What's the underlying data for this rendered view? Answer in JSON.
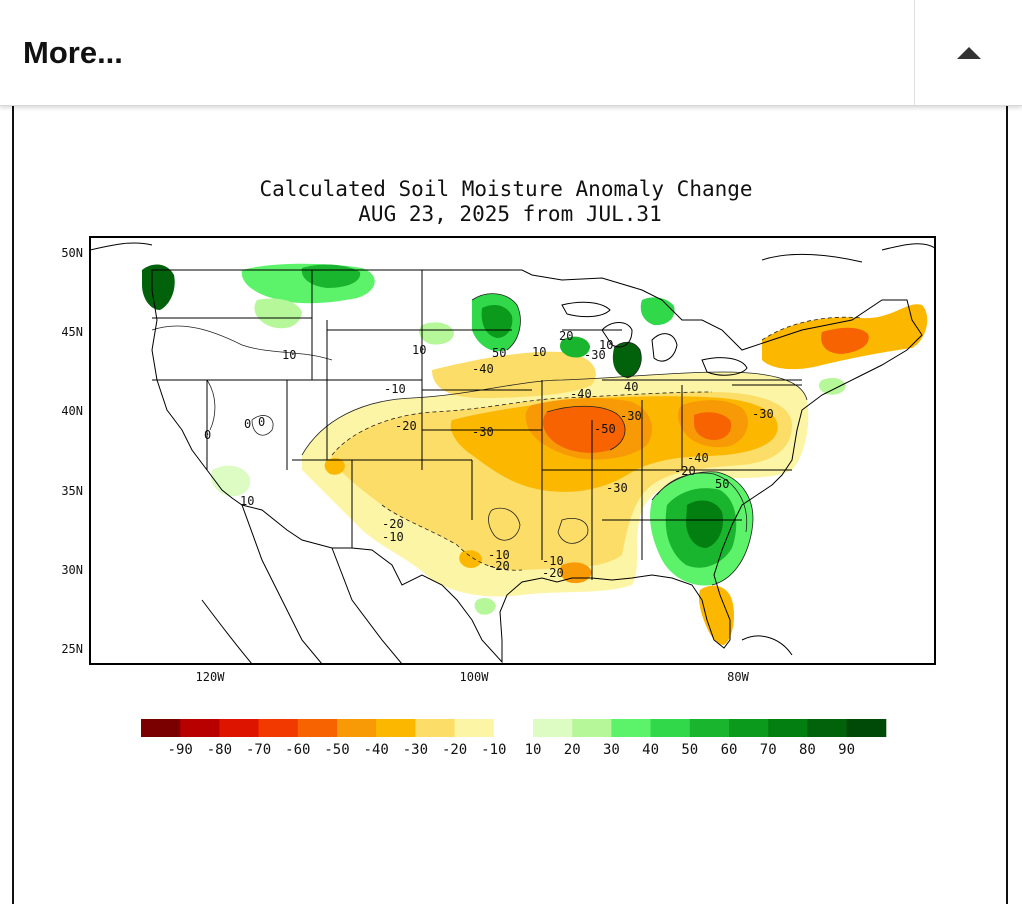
{
  "header": {
    "title": "More...",
    "toggle_icon": "caret-up-icon"
  },
  "map": {
    "title_line1": "Calculated Soil Moisture Anomaly Change",
    "title_line2": "AUG 23, 2025 from JUL.31",
    "lat_labels": [
      "50N",
      "45N",
      "40N",
      "35N",
      "30N",
      "25N"
    ],
    "lon_labels": [
      "120W",
      "100W",
      "80W"
    ],
    "contour_labels": [
      "10",
      "10",
      "-10",
      "-20",
      "-30",
      "-50",
      "-30",
      "-40",
      "-30",
      "-20",
      "-40",
      "-30",
      "50",
      "-20",
      "-10",
      "-10",
      "-20",
      "-10",
      "-20",
      "10",
      "0",
      "0",
      "0",
      "10",
      "50",
      "10",
      "20",
      "-40",
      "40",
      "-30"
    ],
    "legend": {
      "colors": [
        "#7a0000",
        "#b80000",
        "#dd1500",
        "#f23a00",
        "#f76300",
        "#f89a06",
        "#fcb800",
        "#fbdd67",
        "#fdf5a6",
        "#ffffff",
        "#dcfcc4",
        "#b6f79a",
        "#5cf269",
        "#30d84a",
        "#1ab52e",
        "#0b9a1c",
        "#037e11",
        "#02620c",
        "#004a08"
      ],
      "labels": [
        "-90",
        "-80",
        "-70",
        "-60",
        "-50",
        "-40",
        "-30",
        "-20",
        "-10",
        "10",
        "20",
        "30",
        "40",
        "50",
        "60",
        "70",
        "80",
        "90"
      ]
    }
  }
}
